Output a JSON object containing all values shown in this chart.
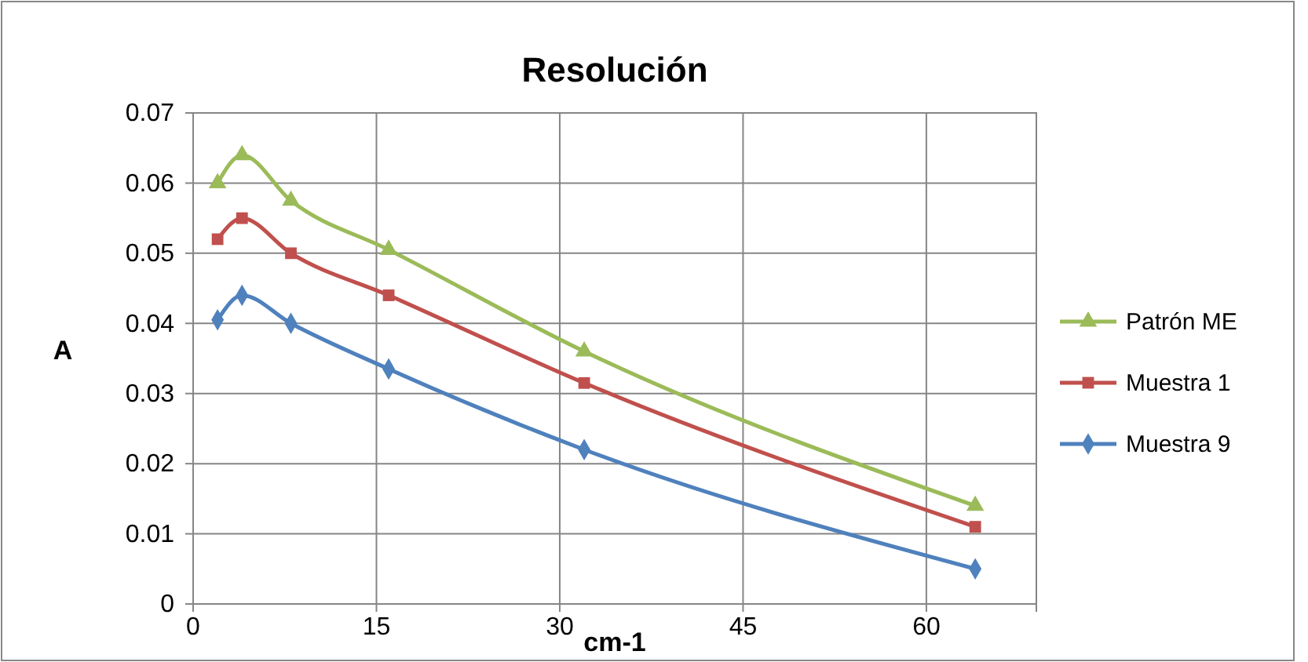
{
  "chart_data": {
    "type": "line",
    "title": "Resolución",
    "xlabel": "cm-1",
    "ylabel": "A",
    "x": [
      2,
      4,
      8,
      16,
      32,
      64
    ],
    "series": [
      {
        "name": "Patrón ME",
        "color": "#9bbb59",
        "marker": "triangle",
        "values": [
          0.06,
          0.064,
          0.0575,
          0.0505,
          0.036,
          0.014
        ]
      },
      {
        "name": "Muestra 1",
        "color": "#c0504d",
        "marker": "square",
        "values": [
          0.052,
          0.055,
          0.05,
          0.044,
          0.0315,
          0.011
        ]
      },
      {
        "name": "Muestra 9",
        "color": "#4f81bd",
        "marker": "diamond",
        "values": [
          0.0405,
          0.044,
          0.04,
          0.0335,
          0.022,
          0.005
        ]
      }
    ],
    "xlim": [
      0,
      69
    ],
    "xticks": [
      0,
      15,
      30,
      45,
      60
    ],
    "ylim": [
      0,
      0.07
    ],
    "yticks": [
      {
        "value": 0,
        "label": "0"
      },
      {
        "value": 0.01,
        "label": "0.01"
      },
      {
        "value": 0.02,
        "label": "0.02"
      },
      {
        "value": 0.03,
        "label": "0.03"
      },
      {
        "value": 0.04,
        "label": "0.04"
      },
      {
        "value": 0.05,
        "label": "0.05"
      },
      {
        "value": 0.06,
        "label": "0.06"
      },
      {
        "value": 0.07,
        "label": "0.07"
      }
    ],
    "grid": true,
    "legend": "right",
    "line_style": "solid"
  }
}
